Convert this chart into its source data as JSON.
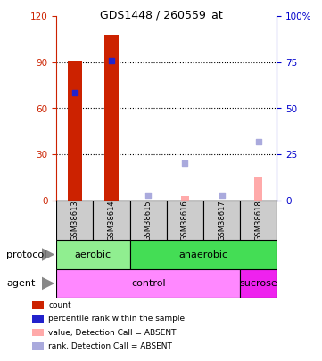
{
  "title": "GDS1448 / 260559_at",
  "samples": [
    "GSM38613",
    "GSM38614",
    "GSM38615",
    "GSM38616",
    "GSM38617",
    "GSM38618"
  ],
  "red_bars": [
    91,
    108,
    0,
    0,
    0,
    0
  ],
  "blue_dots_left": [
    70,
    91,
    0,
    0,
    0,
    0
  ],
  "pink_bars": [
    0,
    0,
    0,
    3,
    0,
    15
  ],
  "light_blue_dots_pct": [
    0,
    0,
    3,
    20,
    3,
    32
  ],
  "ylim_left": [
    0,
    120
  ],
  "ylim_right": [
    0,
    100
  ],
  "yticks_left": [
    0,
    30,
    60,
    90,
    120
  ],
  "yticks_right": [
    0,
    25,
    50,
    75,
    100
  ],
  "protocol_data": [
    [
      "aerobic",
      0,
      2,
      "#90ee90"
    ],
    [
      "anaerobic",
      2,
      6,
      "#44dd55"
    ]
  ],
  "agent_data": [
    [
      "control",
      0,
      5,
      "#ff88ff"
    ],
    [
      "sucrose",
      5,
      6,
      "#ee22ee"
    ]
  ],
  "legend_colors": [
    "#cc2200",
    "#2222cc",
    "#ffaaaa",
    "#aaaadd"
  ],
  "legend_labels": [
    "count",
    "percentile rank within the sample",
    "value, Detection Call = ABSENT",
    "rank, Detection Call = ABSENT"
  ],
  "left_axis_color": "#cc2200",
  "right_axis_color": "#0000cc",
  "bar_width": 0.4,
  "sample_box_color": "#cccccc"
}
